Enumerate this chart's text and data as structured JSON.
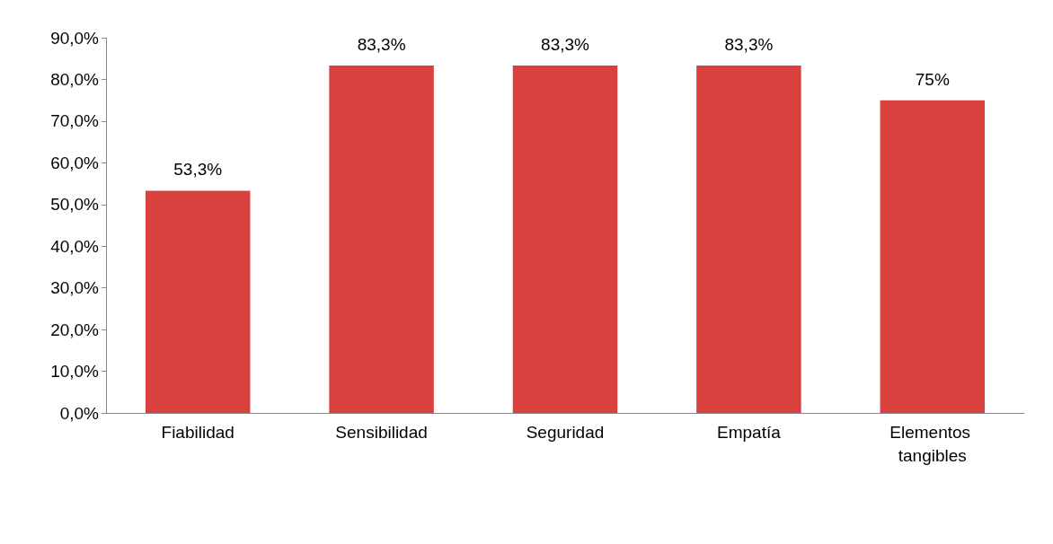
{
  "chart_data": {
    "type": "bar",
    "categories": [
      "Fiabilidad",
      "Sensibilidad",
      "Seguridad",
      "Empatía",
      "Elementos tangibles"
    ],
    "values": [
      53.3,
      83.3,
      83.3,
      83.3,
      75
    ],
    "value_labels": [
      "53,3%",
      "83,3%",
      "83,3%",
      "83,3%",
      "75%"
    ],
    "color": "#d9413f",
    "ylim": [
      0,
      90
    ],
    "yticks": [
      {
        "value": 0,
        "label": "0,0%"
      },
      {
        "value": 10,
        "label": "10,0%"
      },
      {
        "value": 20,
        "label": "20,0%"
      },
      {
        "value": 30,
        "label": "30,0%"
      },
      {
        "value": 40,
        "label": "40,0%"
      },
      {
        "value": 50,
        "label": "50,0%"
      },
      {
        "value": 60,
        "label": "60,0%"
      },
      {
        "value": 70,
        "label": "70,0%"
      },
      {
        "value": 80,
        "label": "80,0%"
      },
      {
        "value": 90,
        "label": "90,0%"
      }
    ],
    "grid": false
  }
}
